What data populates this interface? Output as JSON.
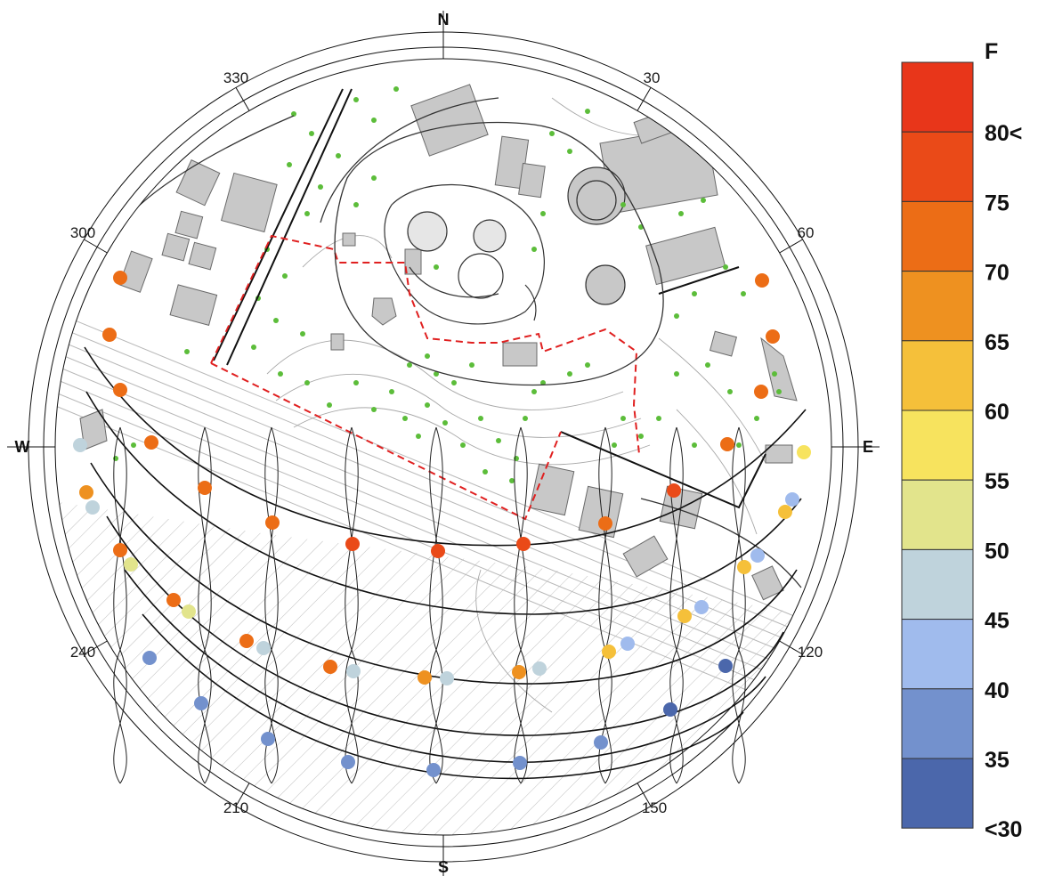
{
  "compass": {
    "cardinals": {
      "north": "N",
      "south": "S",
      "east": "E",
      "west": "W"
    },
    "degrees": [
      {
        "angle": 30,
        "label": "30"
      },
      {
        "angle": 60,
        "label": "60"
      },
      {
        "angle": 120,
        "label": "120"
      },
      {
        "angle": 150,
        "label": "150"
      },
      {
        "angle": 210,
        "label": "210"
      },
      {
        "angle": 240,
        "label": "240"
      },
      {
        "angle": 300,
        "label": "300"
      },
      {
        "angle": 330,
        "label": "330"
      }
    ]
  },
  "legend": {
    "unit": "F",
    "bins": [
      {
        "label": "80<",
        "color": "#e8361a"
      },
      {
        "label": "75",
        "color": "#ea4a18"
      },
      {
        "label": "70",
        "color": "#ec6d16"
      },
      {
        "label": "65",
        "color": "#ee9120"
      },
      {
        "label": "60",
        "color": "#f5c03a"
      },
      {
        "label": "55",
        "color": "#f7e35e"
      },
      {
        "label": "50",
        "color": "#e2e48c"
      },
      {
        "label": "45",
        "color": "#bfd3dc"
      },
      {
        "label": "40",
        "color": "#a0bbed"
      },
      {
        "label": "35",
        "color": "#7391cd"
      },
      {
        "label": "<30",
        "color": "#4b67ab"
      }
    ]
  },
  "colors": {
    "tree": "#5cbd3a",
    "building": "#c8c8c8",
    "boundary": "#e02020",
    "linework": "#111111"
  }
}
